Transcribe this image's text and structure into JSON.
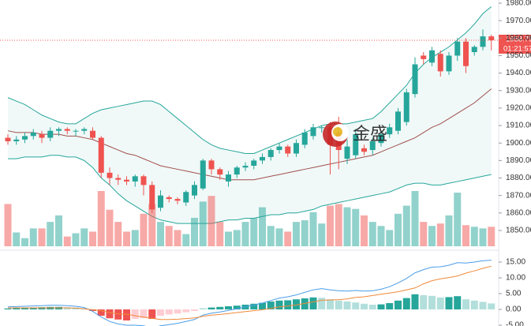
{
  "chart_data": {
    "type": "candlestick",
    "watermark": "金盛",
    "countdown": "01:21:57",
    "up_color": "#26a69a",
    "down_color": "#ef5350",
    "open": [
      1903,
      1901,
      1902,
      1904,
      1905,
      1903,
      1907,
      1908,
      1907,
      1907,
      1907,
      1903,
      1883,
      1880,
      1879,
      1878,
      1881,
      1876,
      1863,
      1869,
      1868,
      1866,
      1870,
      1874,
      1890,
      1885,
      1878,
      1882,
      1886,
      1887,
      1890,
      1892,
      1896,
      1898,
      1894,
      1899,
      1904,
      1909,
      1909,
      1906,
      1891,
      1893,
      1897,
      1896,
      1900,
      1905,
      1907,
      1912,
      1928,
      1950,
      1946,
      1951,
      1941,
      1950,
      1958,
      1952,
      1955,
      1961
    ],
    "high": [
      1905,
      1904,
      1906,
      1908,
      1907,
      1909,
      1909,
      1909,
      1908,
      1909,
      1909,
      1904,
      1886,
      1882,
      1881,
      1882,
      1882,
      1878,
      1873,
      1870,
      1869,
      1873,
      1878,
      1891,
      1891,
      1886,
      1884,
      1887,
      1889,
      1891,
      1894,
      1897,
      1900,
      1899,
      1902,
      1908,
      1911,
      1910,
      1912,
      1915,
      1902,
      1908,
      1899,
      1903,
      1907,
      1911,
      1920,
      1931,
      1949,
      1952,
      1955,
      1953,
      1952,
      1960,
      1960,
      1956,
      1965,
      1962
    ],
    "low": [
      1899,
      1899,
      1900,
      1902,
      1900,
      1901,
      1904,
      1905,
      1904,
      1905,
      1902,
      1880,
      1876,
      1876,
      1876,
      1875,
      1870,
      1860,
      1861,
      1866,
      1865,
      1864,
      1868,
      1873,
      1882,
      1879,
      1875,
      1880,
      1884,
      1885,
      1888,
      1890,
      1894,
      1892,
      1892,
      1897,
      1902,
      1906,
      1882,
      1885,
      1888,
      1891,
      1893,
      1893,
      1898,
      1903,
      1905,
      1910,
      1926,
      1945,
      1944,
      1938,
      1939,
      1947,
      1940,
      1950,
      1953,
      1953
    ],
    "close": [
      1901,
      1902,
      1904,
      1906,
      1903,
      1907,
      1908,
      1907,
      1907,
      1908,
      1903,
      1883,
      1880,
      1879,
      1878,
      1881,
      1876,
      1862,
      1870,
      1868,
      1867,
      1872,
      1876,
      1890,
      1885,
      1882,
      1882,
      1886,
      1887,
      1890,
      1892,
      1896,
      1898,
      1894,
      1900,
      1906,
      1909,
      1909,
      1899,
      1896,
      1898,
      1905,
      1895,
      1901,
      1905,
      1909,
      1918,
      1929,
      1945,
      1948,
      1953,
      1941,
      1950,
      1958,
      1944,
      1955,
      1961,
      1958.79
    ],
    "volume": [
      52,
      17,
      10,
      22,
      22,
      30,
      38,
      12,
      16,
      22,
      18,
      68,
      45,
      30,
      18,
      20,
      40,
      52,
      30,
      25,
      20,
      15,
      35,
      55,
      62,
      30,
      18,
      20,
      30,
      35,
      48,
      25,
      22,
      18,
      30,
      32,
      42,
      28,
      50,
      52,
      48,
      46,
      38,
      30,
      25,
      20,
      40,
      50,
      68,
      30,
      25,
      28,
      38,
      66,
      26,
      24,
      22,
      24
    ],
    "bands": [
      {
        "color": "#26a69a",
        "values": [
          1926,
          1924,
          1922,
          1919,
          1916,
          1914,
          1912,
          1911,
          1911,
          1914,
          1917,
          1919,
          1920,
          1921,
          1922,
          1923,
          1924,
          1924,
          1922,
          1918,
          1914,
          1910,
          1906,
          1902,
          1899,
          1897,
          1896,
          1895,
          1894,
          1894,
          1896,
          1898,
          1900,
          1902,
          1904,
          1906,
          1908,
          1910,
          1911,
          1911,
          1911,
          1912,
          1913,
          1914,
          1918,
          1923,
          1928,
          1933,
          1940,
          1945,
          1949,
          1952,
          1955,
          1959,
          1963,
          1968,
          1974,
          1978
        ]
      },
      {
        "color": "#a0504d",
        "values": [
          1907,
          1906,
          1906,
          1906,
          1905,
          1905,
          1905,
          1904,
          1904,
          1903,
          1902,
          1900,
          1898,
          1896,
          1894,
          1893,
          1891,
          1889,
          1887,
          1886,
          1885,
          1884,
          1883,
          1882,
          1881,
          1880,
          1879,
          1879,
          1879,
          1879,
          1880,
          1881,
          1882,
          1883,
          1884,
          1885,
          1886,
          1887,
          1888,
          1889,
          1890,
          1891,
          1892,
          1893,
          1895,
          1897,
          1899,
          1901,
          1903,
          1906,
          1909,
          1911,
          1914,
          1917,
          1920,
          1923,
          1927,
          1931
        ]
      },
      {
        "color": "#26a69a",
        "values": [
          1891,
          1891,
          1892,
          1892,
          1892,
          1893,
          1893,
          1892,
          1892,
          1890,
          1886,
          1880,
          1876,
          1871,
          1867,
          1864,
          1861,
          1858,
          1856,
          1855,
          1854,
          1854,
          1854,
          1854,
          1854,
          1855,
          1856,
          1856,
          1857,
          1857,
          1858,
          1859,
          1859,
          1860,
          1860,
          1861,
          1862,
          1864,
          1865,
          1866,
          1867,
          1868,
          1869,
          1870,
          1871,
          1872,
          1874,
          1876,
          1877,
          1877,
          1876,
          1876,
          1877,
          1878,
          1879,
          1880,
          1881,
          1882
        ]
      }
    ],
    "ylim": [
      1839.6,
      1981.8
    ],
    "yticks": [
      {
        "value": 1980,
        "label": "1980.00"
      },
      {
        "value": 1970,
        "label": "1970.00"
      },
      {
        "value": 1960,
        "label": "1960.00"
      },
      {
        "value": 1950,
        "label": "1950.00"
      },
      {
        "value": 1940,
        "label": "1940.00"
      },
      {
        "value": 1930,
        "label": "1930.00"
      },
      {
        "value": 1920,
        "label": "1920.00"
      },
      {
        "value": 1910,
        "label": "1910.00"
      },
      {
        "value": 1900,
        "label": "1900.00"
      },
      {
        "value": 1890,
        "label": "1890.00"
      },
      {
        "value": 1880,
        "label": "1880.00"
      },
      {
        "value": 1870,
        "label": "1870.00"
      },
      {
        "value": 1860,
        "label": "1860.00"
      },
      {
        "value": 1850,
        "label": "1850.00"
      }
    ],
    "macd": {
      "ylim": [
        -5.25,
        18.5
      ],
      "yticks": [
        {
          "value": 15,
          "label": "15.00"
        },
        {
          "value": 10,
          "label": "10.00"
        },
        {
          "value": 5,
          "label": "5.00"
        },
        {
          "value": 0,
          "label": "0.00"
        },
        {
          "value": -5,
          "label": "-5.00"
        }
      ],
      "histogram": [
        0.3,
        0.4,
        0.5,
        0.6,
        0.7,
        0.8,
        0.8,
        0.7,
        0.6,
        0.4,
        -0.5,
        -2.0,
        -2.8,
        -3.2,
        -3.5,
        -3.0,
        -2.8,
        -3.0,
        -2.0,
        -1.6,
        -1.3,
        -0.9,
        -0.5,
        0.4,
        0.6,
        0.8,
        1.0,
        1.2,
        1.5,
        1.8,
        2.1,
        2.5,
        2.8,
        2.9,
        3.2,
        3.5,
        3.8,
        3.7,
        3.2,
        2.8,
        2.5,
        2.2,
        1.8,
        1.5,
        1.6,
        2.0,
        2.8,
        3.6,
        4.8,
        4.5,
        4.3,
        3.8,
        3.9,
        4.2,
        3.2,
        2.8,
        2.4,
        1.9
      ],
      "series": [
        {
          "color": "#4a9ee8",
          "values": [
            0.8,
            0.9,
            1.0,
            1.1,
            1.2,
            1.3,
            1.3,
            1.2,
            1.0,
            0.6,
            -0.6,
            -2.4,
            -3.8,
            -4.6,
            -5.0,
            -5.0,
            -5.2,
            -5.8,
            -5.2,
            -4.8,
            -4.4,
            -3.8,
            -3.2,
            -1.8,
            -1.2,
            -0.8,
            -0.3,
            0.2,
            0.8,
            1.4,
            2.0,
            2.8,
            3.6,
            4.0,
            4.6,
            5.4,
            6.2,
            6.6,
            6.2,
            5.9,
            5.8,
            6.0,
            5.8,
            5.9,
            6.4,
            7.2,
            8.4,
            9.8,
            11.6,
            12.6,
            13.4,
            13.5,
            14.0,
            14.8,
            14.7,
            15.0,
            15.4,
            15.6
          ]
        },
        {
          "color": "#f08a3a",
          "values": [
            0.5,
            0.5,
            0.5,
            0.5,
            0.5,
            0.5,
            0.5,
            0.5,
            0.4,
            0.2,
            -0.1,
            -0.4,
            -1.0,
            -1.4,
            -1.5,
            -2.0,
            -2.4,
            -2.8,
            -3.2,
            -3.2,
            -3.1,
            -2.9,
            -2.7,
            -2.2,
            -1.8,
            -1.6,
            -1.3,
            -1.0,
            -0.7,
            -0.4,
            -0.1,
            0.3,
            0.8,
            1.1,
            1.4,
            1.9,
            2.4,
            2.9,
            3.0,
            3.1,
            3.3,
            3.8,
            4.0,
            4.4,
            4.8,
            5.2,
            5.6,
            6.2,
            6.8,
            8.1,
            9.1,
            9.7,
            10.1,
            10.6,
            11.5,
            12.2,
            13.0,
            13.7
          ]
        }
      ]
    }
  }
}
